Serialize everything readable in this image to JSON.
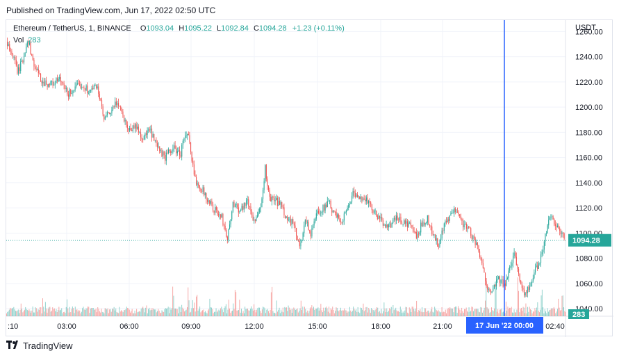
{
  "header": {
    "published": "Published on TradingView.com, Jun 17, 2022 02:50 UTC"
  },
  "legend": {
    "symbol": "Ethereum / TetherUS, 1, BINANCE",
    "o_label": "O",
    "o_value": "1093.04",
    "h_label": "H",
    "h_value": "1095.22",
    "l_label": "L",
    "l_value": "1092.84",
    "c_label": "C",
    "c_value": "1094.28",
    "change": "+1.23 (+0.11%)",
    "vol_label": "Vol",
    "vol_value": "283"
  },
  "footer": {
    "brand": "TradingView",
    "logo": "tv-logo-icon"
  },
  "colors": {
    "up": "#26a69a",
    "down": "#ef5350",
    "crosshair": "#2962ff",
    "grid": "#f0f3fa",
    "last_price": "#26a69a"
  },
  "chart_data": {
    "type": "candlestick",
    "currency": "USDT",
    "y_ticks": [
      "1260.00",
      "1240.00",
      "1220.00",
      "1200.00",
      "1180.00",
      "1160.00",
      "1140.00",
      "1120.00",
      "1100.00",
      "1080.00",
      "1060.00",
      "1040.00"
    ],
    "ylim": [
      1034,
      1269
    ],
    "x_ticks": [
      ":10",
      "03:00",
      "06:00",
      "09:00",
      "12:00",
      "15:00",
      "18:00",
      "21:00",
      "02:40"
    ],
    "crosshair_label": "17 Jun '22   00:00",
    "last_price_label": "1094.28",
    "last_volume_label": "283",
    "last_price": 1094.28,
    "price_path": [
      [
        0,
        1252
      ],
      [
        8,
        1242
      ],
      [
        16,
        1228
      ],
      [
        24,
        1238
      ],
      [
        30,
        1255
      ],
      [
        40,
        1232
      ],
      [
        52,
        1220
      ],
      [
        64,
        1218
      ],
      [
        76,
        1222
      ],
      [
        88,
        1210
      ],
      [
        96,
        1214
      ],
      [
        108,
        1218
      ],
      [
        120,
        1212
      ],
      [
        130,
        1218
      ],
      [
        140,
        1190
      ],
      [
        150,
        1196
      ],
      [
        160,
        1205
      ],
      [
        168,
        1192
      ],
      [
        176,
        1182
      ],
      [
        186,
        1185
      ],
      [
        196,
        1175
      ],
      [
        206,
        1182
      ],
      [
        216,
        1168
      ],
      [
        228,
        1160
      ],
      [
        240,
        1168
      ],
      [
        250,
        1162
      ],
      [
        256,
        1178
      ],
      [
        262,
        1176
      ],
      [
        266,
        1158
      ],
      [
        272,
        1142
      ],
      [
        280,
        1136
      ],
      [
        290,
        1126
      ],
      [
        300,
        1118
      ],
      [
        310,
        1112
      ],
      [
        318,
        1096
      ],
      [
        326,
        1124
      ],
      [
        336,
        1118
      ],
      [
        346,
        1126
      ],
      [
        356,
        1110
      ],
      [
        366,
        1118
      ],
      [
        372,
        1152
      ],
      [
        378,
        1128
      ],
      [
        386,
        1126
      ],
      [
        396,
        1122
      ],
      [
        404,
        1110
      ],
      [
        412,
        1108
      ],
      [
        422,
        1088
      ],
      [
        430,
        1112
      ],
      [
        438,
        1098
      ],
      [
        446,
        1116
      ],
      [
        456,
        1120
      ],
      [
        464,
        1124
      ],
      [
        472,
        1114
      ],
      [
        482,
        1110
      ],
      [
        490,
        1118
      ],
      [
        498,
        1132
      ],
      [
        506,
        1126
      ],
      [
        514,
        1130
      ],
      [
        522,
        1122
      ],
      [
        532,
        1114
      ],
      [
        542,
        1108
      ],
      [
        552,
        1106
      ],
      [
        562,
        1112
      ],
      [
        572,
        1108
      ],
      [
        582,
        1106
      ],
      [
        590,
        1096
      ],
      [
        598,
        1108
      ],
      [
        606,
        1112
      ],
      [
        614,
        1098
      ],
      [
        622,
        1090
      ],
      [
        630,
        1106
      ],
      [
        640,
        1114
      ],
      [
        648,
        1120
      ],
      [
        656,
        1108
      ],
      [
        664,
        1104
      ],
      [
        672,
        1096
      ],
      [
        680,
        1084
      ],
      [
        686,
        1070
      ],
      [
        692,
        1058
      ],
      [
        700,
        1054
      ],
      [
        708,
        1064
      ],
      [
        716,
        1058
      ],
      [
        724,
        1070
      ],
      [
        730,
        1086
      ],
      [
        738,
        1064
      ],
      [
        746,
        1052
      ],
      [
        754,
        1058
      ],
      [
        762,
        1072
      ],
      [
        768,
        1078
      ],
      [
        776,
        1100
      ],
      [
        784,
        1116
      ],
      [
        792,
        1104
      ],
      [
        800,
        1098
      ],
      [
        806,
        1094
      ]
    ],
    "volume_spikes": [
      [
        240,
        14
      ],
      [
        262,
        22
      ],
      [
        274,
        28
      ],
      [
        330,
        18
      ],
      [
        382,
        16
      ],
      [
        690,
        20
      ],
      [
        704,
        36
      ],
      [
        736,
        34
      ],
      [
        770,
        22
      ],
      [
        800,
        14
      ]
    ]
  }
}
